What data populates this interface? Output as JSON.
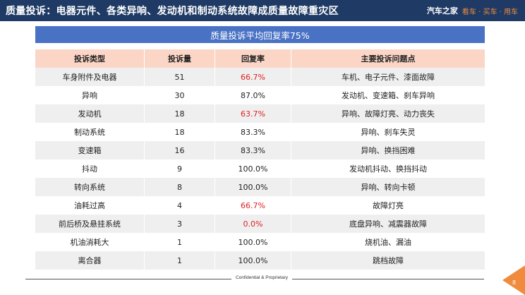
{
  "header": {
    "title": "质量投诉：电器元件、各类异响、发动机和制动系统故障成质量故障重灾区",
    "brand_name": "汽车之家",
    "brand_slogan": "看车 · 买车 · 用车"
  },
  "banner": {
    "text": "质量投诉平均回复率75%"
  },
  "table": {
    "columns": [
      "投诉类型",
      "投诉量",
      "回复率",
      "主要投诉问题点"
    ],
    "rows": [
      {
        "type": "车身附件及电器",
        "count": "51",
        "rate": "66.7%",
        "rate_highlight": true,
        "issues": "车机、电子元件、漆面故障"
      },
      {
        "type": "异响",
        "count": "30",
        "rate": "87.0%",
        "rate_highlight": false,
        "issues": "发动机、变速箱、刹车异响"
      },
      {
        "type": "发动机",
        "count": "18",
        "rate": "63.7%",
        "rate_highlight": true,
        "issues": "异响、故障灯亮、动力丧失"
      },
      {
        "type": "制动系统",
        "count": "18",
        "rate": "83.3%",
        "rate_highlight": false,
        "issues": "异响、刹车失灵"
      },
      {
        "type": "变速箱",
        "count": "16",
        "rate": "83.3%",
        "rate_highlight": false,
        "issues": "异响、换挡困难"
      },
      {
        "type": "抖动",
        "count": "9",
        "rate": "100.0%",
        "rate_highlight": false,
        "issues": "发动机抖动、换挡抖动"
      },
      {
        "type": "转向系统",
        "count": "8",
        "rate": "100.0%",
        "rate_highlight": false,
        "issues": "异响、转向卡顿"
      },
      {
        "type": "油耗过高",
        "count": "4",
        "rate": "66.7%",
        "rate_highlight": true,
        "issues": "故障灯亮"
      },
      {
        "type": "前后桥及悬挂系统",
        "count": "3",
        "rate": "0.0%",
        "rate_highlight": true,
        "issues": "底盘异响、减震器故障"
      },
      {
        "type": "机油消耗大",
        "count": "1",
        "rate": "100.0%",
        "rate_highlight": false,
        "issues": "烧机油、漏油"
      },
      {
        "type": "离合器",
        "count": "1",
        "rate": "100.0%",
        "rate_highlight": false,
        "issues": "跳档故障"
      }
    ]
  },
  "footer": {
    "text": "Confidential & Proprietary",
    "page": "8"
  },
  "colors": {
    "header_bg": "#1f3a64",
    "banner_bg": "#4a72c4",
    "table_head_bg": "#fbd6c6",
    "highlight": "#e02020",
    "accent": "#f08b3e"
  }
}
